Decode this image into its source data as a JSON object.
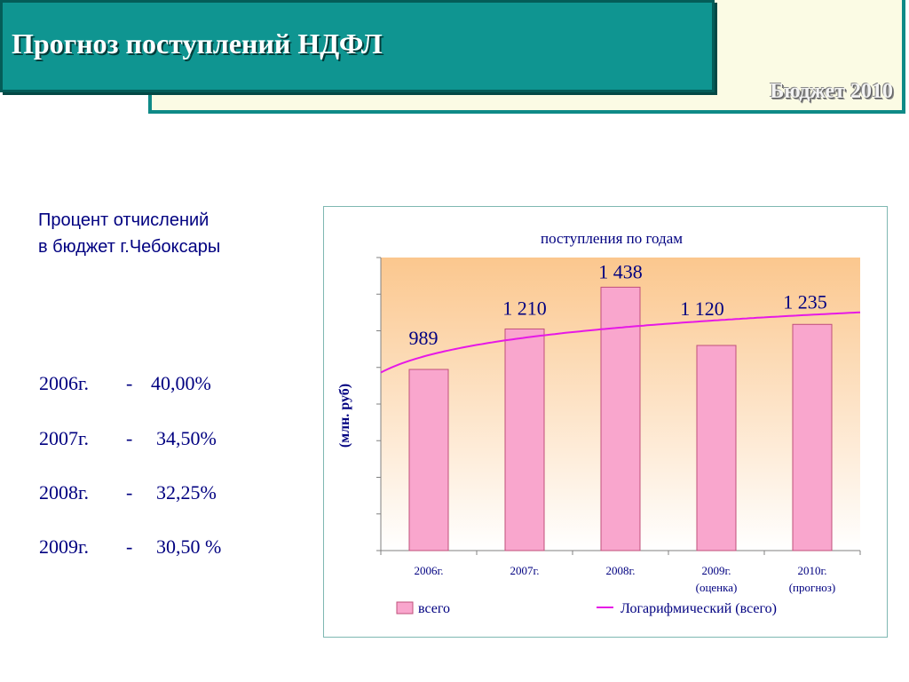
{
  "header": {
    "title": "Прогноз поступлений НДФЛ",
    "budget_stamp": "Бюджет 2010"
  },
  "deductions": {
    "heading_line1": "Процент отчислений",
    "heading_line2": "в бюджет г.Чебоксары",
    "rows": [
      {
        "year": "2006г.",
        "dash": "-",
        "value": "40,00%"
      },
      {
        "year": "2007г.",
        "dash": "-",
        "value": "34,50%"
      },
      {
        "year": "2008г.",
        "dash": "-",
        "value": "32,25%"
      },
      {
        "year": "2009г.",
        "dash": "-",
        "value": "30,50 %"
      }
    ]
  },
  "colors": {
    "accent": "#0f9591",
    "text_navy": "#000080",
    "bar_fill": "#f9a6cd",
    "bar_stroke": "#c0507a",
    "trend_line": "#e619e6",
    "plot_gradient_top": "#fbc78e",
    "plot_gradient_bottom": "#ffffff"
  },
  "chart_data": {
    "type": "bar",
    "title": "поступления по годам",
    "ylabel": "(млн. руб)",
    "xlabel": "",
    "categories": [
      {
        "line1": "2006г.",
        "line2": ""
      },
      {
        "line1": "2007г.",
        "line2": ""
      },
      {
        "line1": "2008г.",
        "line2": ""
      },
      {
        "line1": "2009г.",
        "line2": "(оценка)"
      },
      {
        "line1": "2010г.",
        "line2": "(прогноз)"
      }
    ],
    "series": [
      {
        "name": "всего",
        "values": [
          989,
          1210,
          1438,
          1120,
          1235
        ],
        "value_labels": [
          "989",
          "1 210",
          "1 438",
          "1 120",
          "1 235"
        ]
      }
    ],
    "trendline": {
      "name": "Логарифмический (всего)",
      "type": "logarithmic",
      "of_series": "всего"
    },
    "ylim": [
      0,
      1600
    ],
    "ytick_step": 200,
    "grid": false,
    "legend_position": "bottom"
  }
}
